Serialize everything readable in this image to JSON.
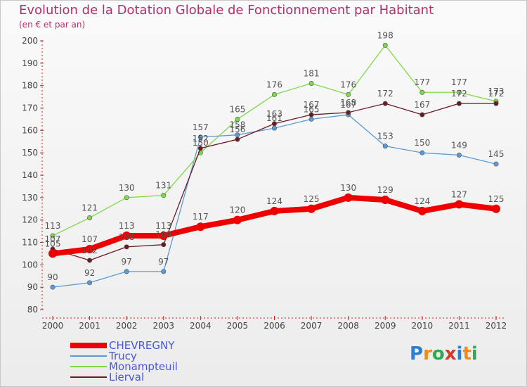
{
  "header": {
    "title": "Evolution de la Dotation Globale de Fonctionnement par Habitant",
    "subtitle": "(en € et par an)"
  },
  "logo": {
    "text": "Proxiti",
    "colors": [
      "#2a7fd4",
      "#f08a1c",
      "#2fa84f",
      "#d43a2a",
      "#2a7fd4",
      "#f08a1c",
      "#2fa84f"
    ]
  },
  "chart_data": {
    "type": "line",
    "categories": [
      "2000",
      "2001",
      "2002",
      "2003",
      "2004",
      "2005",
      "2006",
      "2007",
      "2008",
      "2009",
      "2010",
      "2011",
      "2012"
    ],
    "ylim": [
      80,
      200
    ],
    "yticks": [
      80,
      90,
      100,
      110,
      120,
      130,
      140,
      150,
      160,
      170,
      180,
      190,
      200
    ],
    "grid": false,
    "legend_position": "bottom-left",
    "series": [
      {
        "name": "CHEVREGNY",
        "color": "#ee0000",
        "values": [
          105,
          107,
          113,
          113,
          117,
          120,
          124,
          125,
          130,
          129,
          124,
          127,
          125
        ]
      },
      {
        "name": "Trucy",
        "color": "#5b9bd5",
        "values": [
          90,
          92,
          97,
          97,
          157,
          158,
          161,
          165,
          167,
          153,
          150,
          149,
          145
        ]
      },
      {
        "name": "Monampteuil",
        "color": "#7fd84a",
        "values": [
          113,
          121,
          130,
          131,
          150,
          165,
          176,
          181,
          176,
          198,
          177,
          177,
          173
        ]
      },
      {
        "name": "Lierval",
        "color": "#6b1a24",
        "values": [
          107,
          102,
          108,
          109,
          152,
          156,
          163,
          167,
          168,
          172,
          167,
          172,
          172
        ]
      }
    ]
  }
}
